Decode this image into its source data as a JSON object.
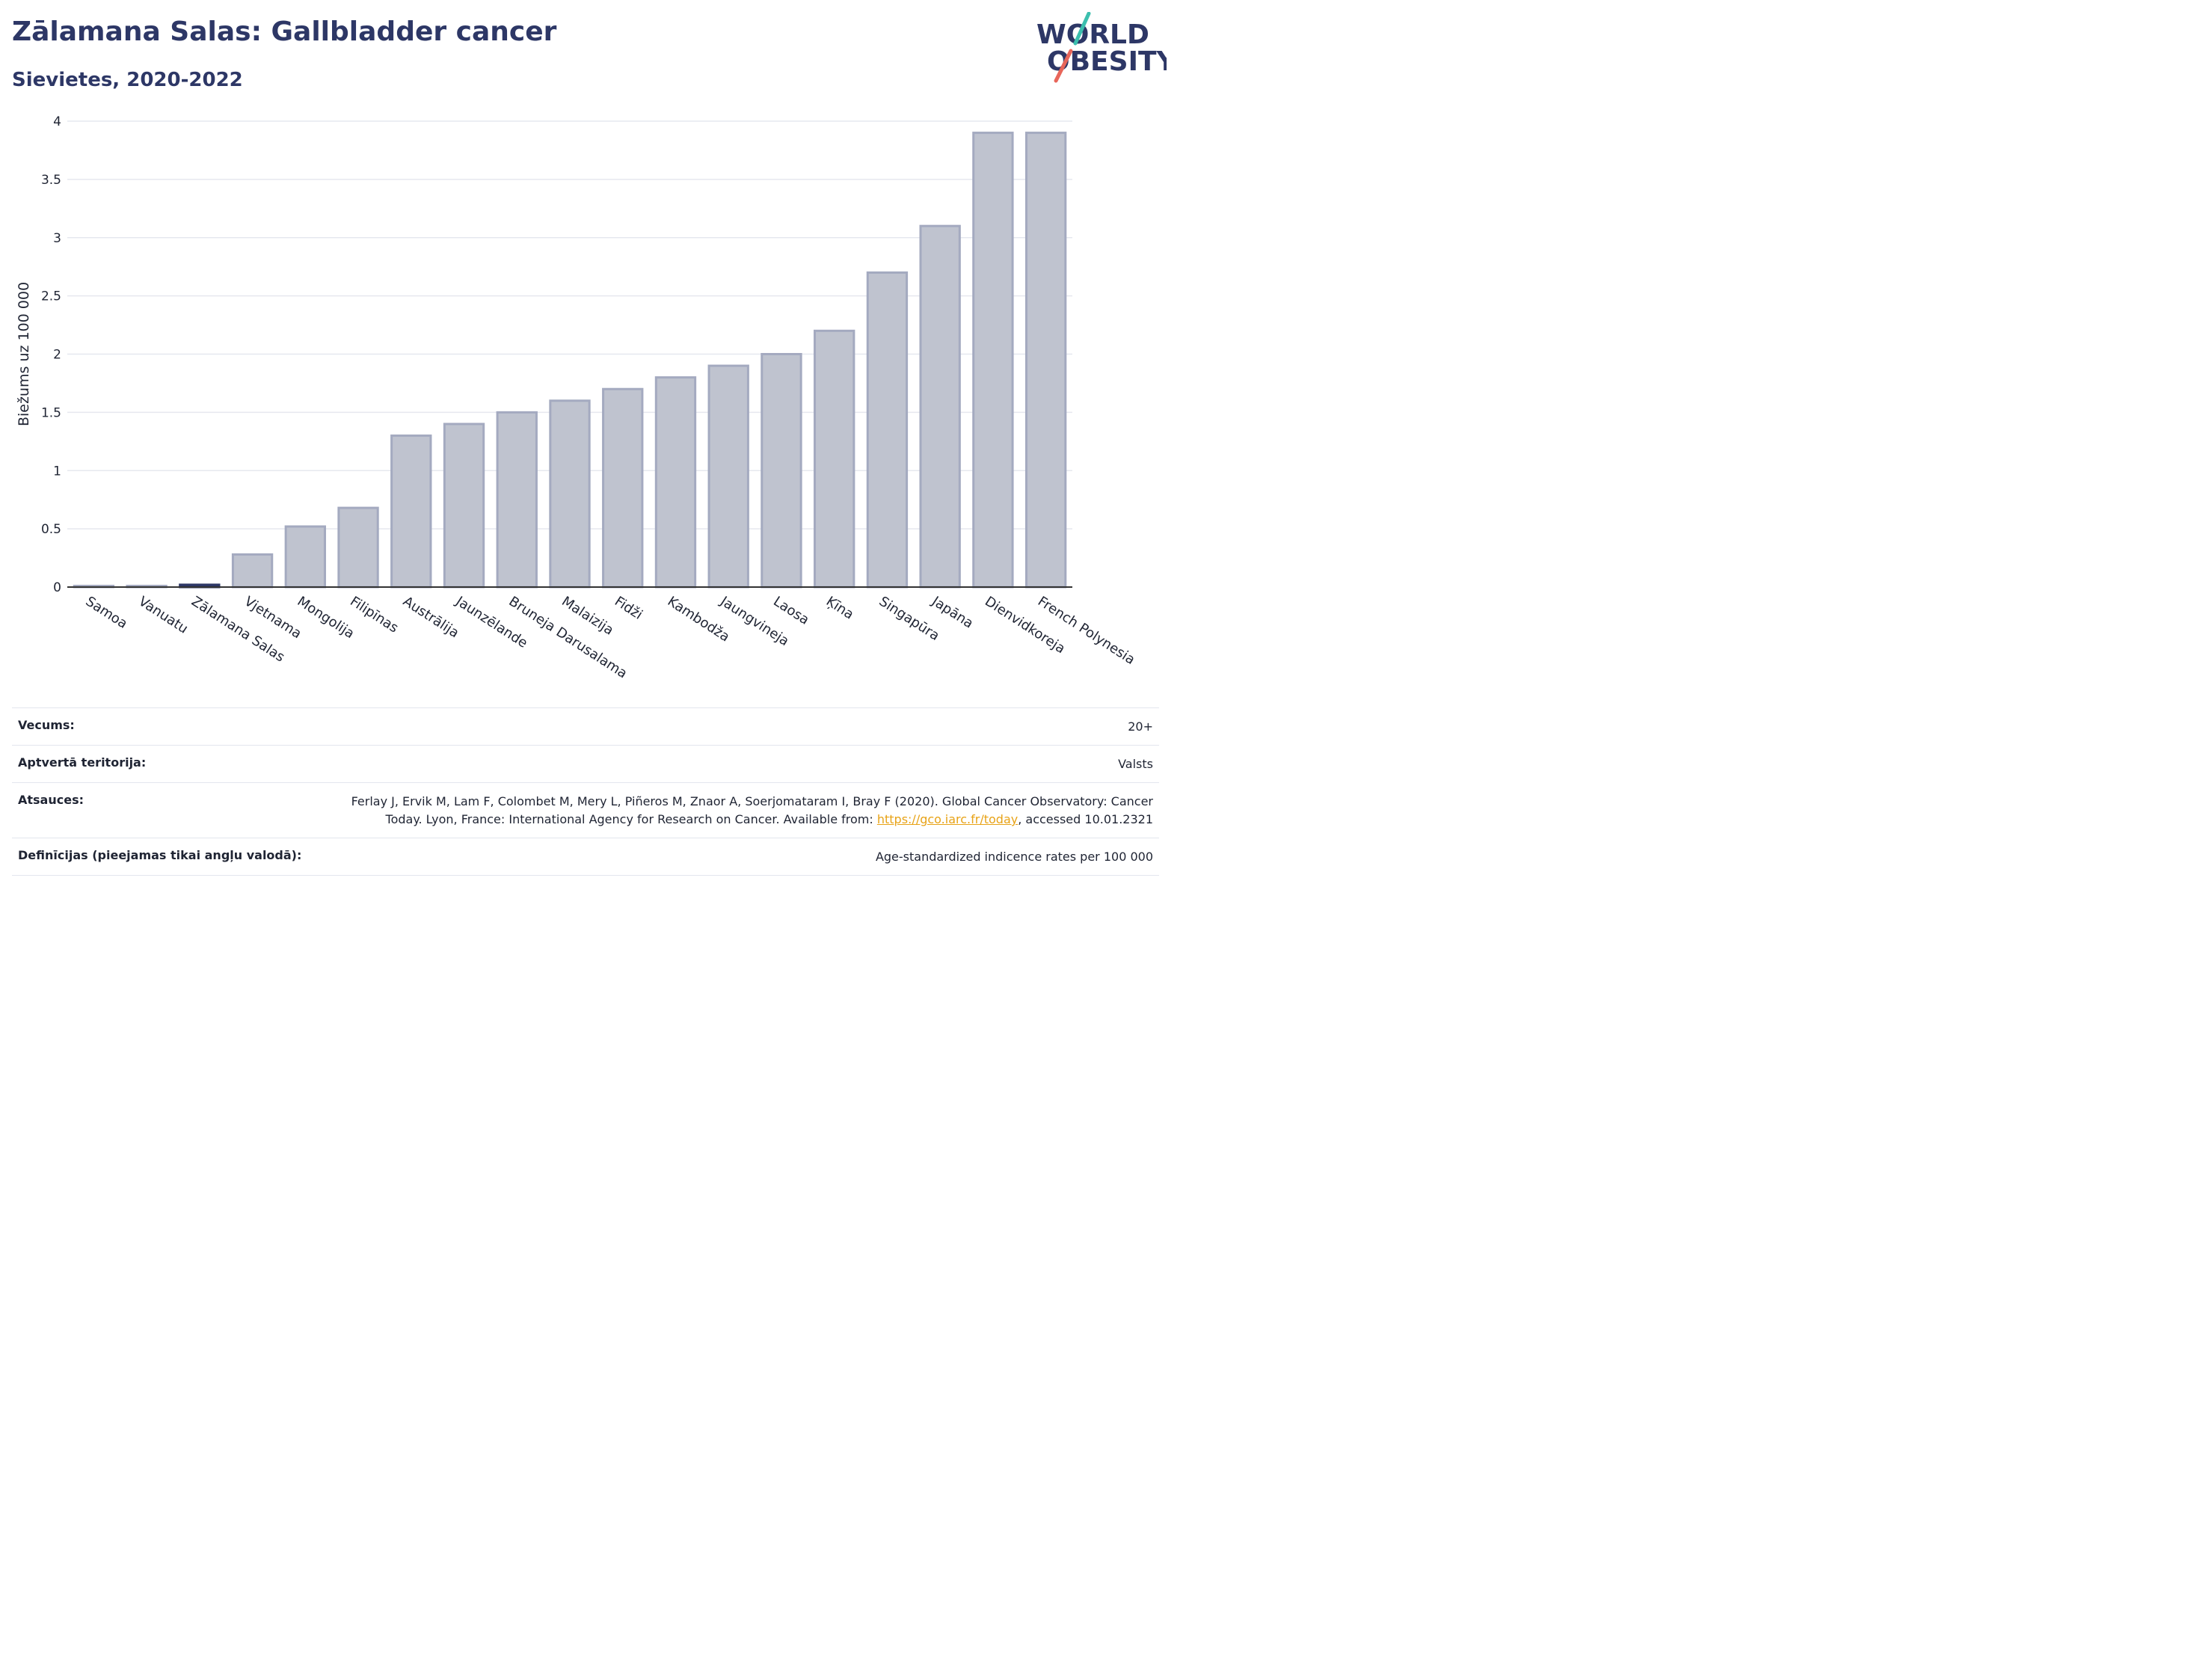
{
  "header": {
    "title": "Zālamana Salas: Gallbladder cancer",
    "subtitle": "Sievietes, 2020-2022"
  },
  "logo": {
    "line1": "WORLD",
    "line2": "OBESITY",
    "colors": {
      "text": "#2d3766",
      "slash_top": "#3cbfae",
      "slash_bottom": "#e8665a"
    }
  },
  "chart_data": {
    "type": "bar",
    "title": "",
    "xlabel": "",
    "ylabel": "Biežums uz 100 000",
    "ylim": [
      0,
      4
    ],
    "yticks": [
      0,
      0.5,
      1,
      1.5,
      2,
      2.5,
      3,
      3.5,
      4
    ],
    "ytick_labels": [
      "0",
      "0.5",
      "1",
      "1.5",
      "2",
      "2.5",
      "3",
      "3.5",
      "4"
    ],
    "grid": true,
    "categories": [
      "Samoa",
      "Vanuatu",
      "Zālamana Salas",
      "Vjetnama",
      "Mongolija",
      "Filipīnas",
      "Austrālija",
      "Jaunzēlande",
      "Bruneja Darusalama",
      "Malaizija",
      "Fidži",
      "Kambodža",
      "Jaungvineja",
      "Laosa",
      "Ķīna",
      "Singapūra",
      "Japāna",
      "Dienvidkoreja",
      "French Polynesia"
    ],
    "values": [
      0.01,
      0.01,
      0.02,
      0.28,
      0.52,
      0.68,
      1.3,
      1.4,
      1.5,
      1.6,
      1.7,
      1.8,
      1.9,
      2.0,
      2.2,
      2.7,
      3.1,
      3.9,
      3.9
    ],
    "highlight": "Zālamana Salas",
    "colors": {
      "bar_fill": "#bfc3cf",
      "bar_stroke": "#a4aac0",
      "highlight": "#2d3766",
      "grid": "#e6e8ef",
      "axis": "#333333"
    }
  },
  "info": {
    "rows": [
      {
        "label": "Vecums:",
        "value": "20+"
      },
      {
        "label": "Aptvertā teritorija:",
        "value": "Valsts"
      },
      {
        "label": "Atsauces:",
        "value_line1": "Ferlay J, Ervik M, Lam F, Colombet M, Mery L, Piñeros M, Znaor A, Soerjomataram I, Bray F (2020). Global Cancer Observatory: Cancer",
        "value_line2_before": "Today. Lyon, France: International Agency for Research on Cancer. Available from: ",
        "link": "https://gco.iarc.fr/today",
        "value_line2_after": ", accessed 10.01.2321"
      },
      {
        "label": "Definīcijas (pieejamas tikai angļu valodā):",
        "value": "Age-standardized indicence rates per 100 000"
      }
    ]
  }
}
